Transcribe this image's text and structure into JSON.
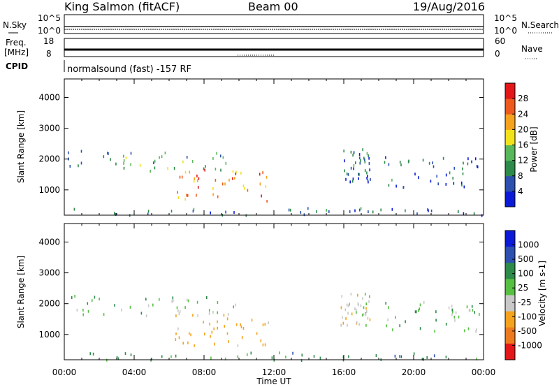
{
  "header": {
    "title": "King Salmon (fitACF)",
    "beam": "Beam 00",
    "date": "19/Aug/2016"
  },
  "strips": {
    "nsky_label": "N.Sky",
    "nsearch_label": "N.Search",
    "freq_label_1": "Freq.",
    "freq_label_2": "[MHz]",
    "nave_label": "Nave",
    "cpid_label": "CPID",
    "noise_ticks": [
      "10^5",
      "10^0"
    ],
    "freq_ticks": [
      "18",
      "8"
    ],
    "nave_ticks": [
      "60",
      "0"
    ],
    "cpid_text": "normalsound (fast) -157 RF"
  },
  "chart_data": [
    {
      "type": "heatmap",
      "title": "",
      "xlabel": "",
      "ylabel": "Slant Range [km]",
      "xlim": [
        "00:00",
        "24:00"
      ],
      "ylim": [
        180,
        4600
      ],
      "yticks": [
        1000,
        2000,
        3000,
        4000
      ],
      "colorbar_label": "Power [dB]",
      "colorbar_ticks": [
        "4",
        "8",
        "12",
        "16",
        "20",
        "24",
        "28"
      ],
      "colorbar_range": [
        0,
        30
      ],
      "colors": [
        "#0b1ad6",
        "#2c4fb0",
        "#2d8a4a",
        "#57b75a",
        "#f2e21a",
        "#f5a21c",
        "#ee5a1e",
        "#e3161a"
      ],
      "regions": [
        {
          "t_start": 0.2,
          "t_end": 9.8,
          "r_min": 1650,
          "r_max": 2300,
          "value": 10
        },
        {
          "t_start": 6.3,
          "t_end": 11.8,
          "r_min": 650,
          "r_max": 1700,
          "value": 22
        },
        {
          "t_start": 15.8,
          "t_end": 17.5,
          "r_min": 1300,
          "r_max": 2400,
          "value": 6
        },
        {
          "t_start": 18.3,
          "t_end": 23.8,
          "r_min": 1100,
          "r_max": 2100,
          "value": 6
        },
        {
          "t_start": 0.0,
          "t_end": 24.0,
          "r_min": 200,
          "r_max": 450,
          "value": 8
        }
      ]
    },
    {
      "type": "heatmap",
      "title": "",
      "xlabel": "Time UT",
      "ylabel": "Slant Range [km]",
      "xlim": [
        "00:00",
        "24:00"
      ],
      "ylim": [
        180,
        4600
      ],
      "xticks": [
        "00:00",
        "04:00",
        "08:00",
        "12:00",
        "16:00",
        "20:00",
        "00:00"
      ],
      "yticks": [
        1000,
        2000,
        3000,
        4000
      ],
      "colorbar_label": "Velocity [m s-1]",
      "colorbar_ticks": [
        "1000",
        "500",
        "100",
        "25",
        "-25",
        "-100",
        "-500",
        "-1000"
      ],
      "colors": [
        "#0b1ad6",
        "#2c4fb0",
        "#2d8a4a",
        "#57c042",
        "#c8c8c8",
        "#f5a21c",
        "#ee7a1e",
        "#e3161a"
      ],
      "regions": [
        {
          "t_start": 0.2,
          "t_end": 9.8,
          "r_min": 1650,
          "r_max": 2300,
          "value": 0
        },
        {
          "t_start": 6.3,
          "t_end": 11.8,
          "r_min": 650,
          "r_max": 1700,
          "value": -150
        },
        {
          "t_start": 15.8,
          "t_end": 17.5,
          "r_min": 1300,
          "r_max": 2400,
          "value": -50
        },
        {
          "t_start": 18.3,
          "t_end": 23.8,
          "r_min": 1100,
          "r_max": 2100,
          "value": 0
        },
        {
          "t_start": 0.0,
          "t_end": 24.0,
          "r_min": 200,
          "r_max": 450,
          "value": 50
        }
      ]
    }
  ]
}
